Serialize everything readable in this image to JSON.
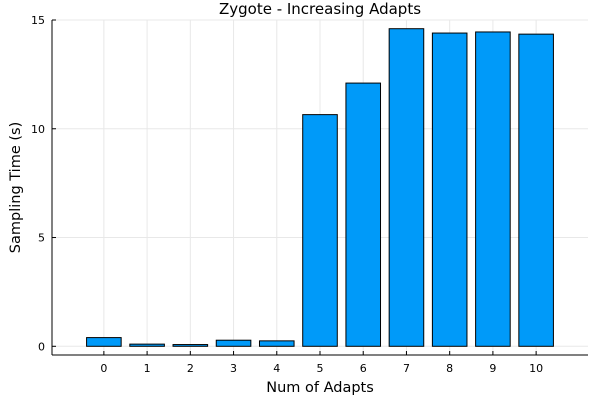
{
  "chart_data": {
    "type": "bar",
    "title": "Zygote - Increasing Adapts",
    "xlabel": "Num of Adapts",
    "ylabel": "Sampling Time (s)",
    "categories": [
      "0",
      "1",
      "2",
      "3",
      "4",
      "5",
      "6",
      "7",
      "8",
      "9",
      "10"
    ],
    "values": [
      0.4,
      0.1,
      0.08,
      0.28,
      0.25,
      10.65,
      12.1,
      14.6,
      14.4,
      14.45,
      14.35
    ],
    "ylim": [
      -0.4,
      15
    ],
    "yticks": [
      0,
      5,
      10,
      15
    ],
    "grid": true,
    "legend": "none",
    "bar_color": "#009af9",
    "edge_color": "#000000"
  }
}
